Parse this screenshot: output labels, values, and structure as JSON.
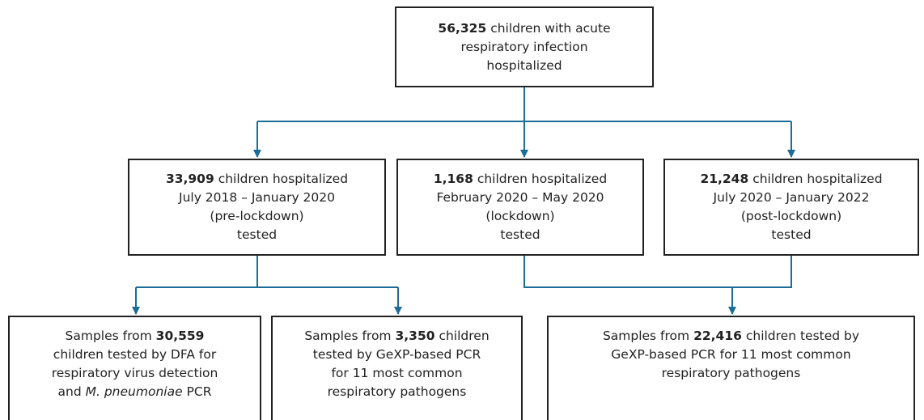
{
  "nodes": [
    {
      "lines": [
        [
          "56,325",
          "children with acute"
        ],
        [
          "respiratory infection"
        ],
        [
          "hospitalized"
        ]
      ]
    },
    {
      "lines": [
        [
          "33,909",
          "children hospitalized"
        ],
        [
          "July 2018 – January 2020"
        ],
        [
          "(pre-lockdown)"
        ],
        [
          "tested"
        ]
      ]
    },
    {
      "lines": [
        [
          "1,168",
          "children hospitalized"
        ],
        [
          "February 2020 – May 2020"
        ],
        [
          "(lockdown)"
        ],
        [
          "tested"
        ]
      ]
    },
    {
      "lines": [
        [
          "21,248",
          "children hospitalized"
        ],
        [
          "July 2020 – January 2022"
        ],
        [
          "(post-lockdown)"
        ],
        [
          "tested"
        ]
      ]
    },
    {
      "lines": [
        [
          "Samples from",
          "30,559"
        ],
        [
          "children tested by DFA for"
        ],
        [
          "respiratory virus detection"
        ],
        [
          "and",
          "M. pneumoniae",
          "PCR"
        ]
      ]
    },
    {
      "lines": [
        [
          "Samples from",
          "3,350",
          "children"
        ],
        [
          "tested by GeXP-based PCR"
        ],
        [
          "for 11 most common"
        ],
        [
          "respiratory pathogens"
        ]
      ]
    },
    {
      "lines": [
        [
          "Samples from",
          "22,416",
          "children tested by"
        ],
        [
          "GeXP-based PCR for 11 most common"
        ],
        [
          "respiratory pathogens"
        ]
      ]
    }
  ]
}
